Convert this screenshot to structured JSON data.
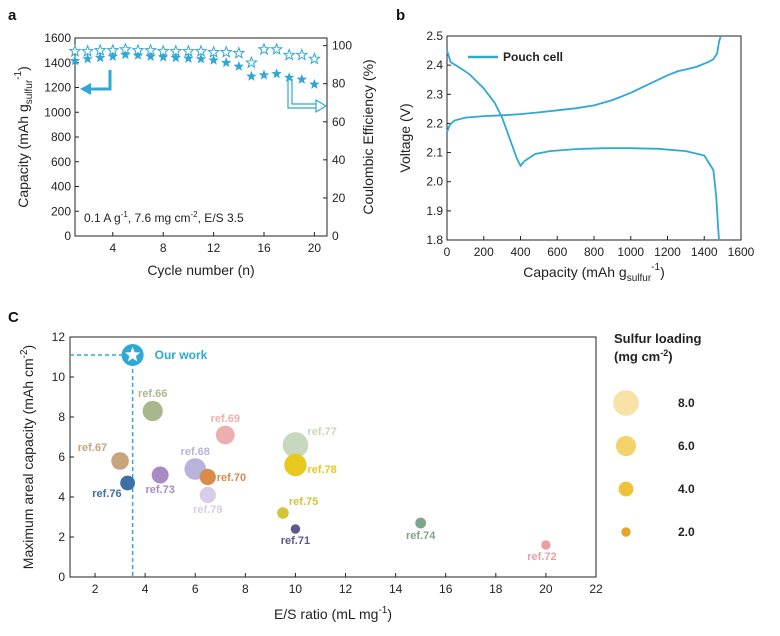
{
  "colors": {
    "accent": "#2FA8D5",
    "axis": "#222222"
  },
  "chart_data": [
    {
      "panel": "a",
      "type": "scatter",
      "xlabel": "Cycle number (n)",
      "ylabel_left_main": "Capacity (mAh g",
      "ylabel_left_sub": "sulfur",
      "ylabel_left_sup": "-1",
      "ylabel_left_end": ")",
      "ylabel_right": "Coulombic Efficiency (%)",
      "xlim": [
        1,
        21
      ],
      "xticks": [
        "4",
        "8",
        "12",
        "16",
        "20"
      ],
      "ylim_left": [
        0,
        1600
      ],
      "yticks_left": [
        "0",
        "200",
        "400",
        "600",
        "800",
        "1000",
        "1200",
        "1400",
        "1600"
      ],
      "ylim_right": [
        0,
        104
      ],
      "yticks_right": [
        "0",
        "20",
        "40",
        "60",
        "80",
        "100"
      ],
      "annotation": {
        "t1": "0.1 A g",
        "s1": "-1",
        "t2": ", 7.6 mg cm",
        "s2": "-2",
        "t3": ", E/S 3.5"
      },
      "series": [
        {
          "name": "Capacity",
          "marker": "filled-star",
          "axis": "left",
          "x": [
            1,
            2,
            3,
            4,
            5,
            6,
            7,
            8,
            9,
            10,
            11,
            12,
            13,
            14,
            15,
            16,
            17,
            18,
            19,
            20
          ],
          "values": [
            1415,
            1430,
            1440,
            1450,
            1465,
            1460,
            1450,
            1445,
            1440,
            1435,
            1430,
            1420,
            1400,
            1370,
            1290,
            1300,
            1310,
            1280,
            1265,
            1225
          ]
        },
        {
          "name": "Coulombic Efficiency",
          "marker": "open-star",
          "axis": "right",
          "x": [
            1,
            2,
            3,
            4,
            5,
            6,
            7,
            8,
            9,
            10,
            11,
            12,
            13,
            14,
            15,
            16,
            17,
            18,
            19,
            20
          ],
          "values": [
            97,
            97,
            97.5,
            97.5,
            98,
            97.5,
            97.5,
            97,
            97,
            97,
            97,
            96.5,
            96.5,
            96,
            91,
            98,
            98,
            95,
            95,
            93
          ]
        }
      ]
    },
    {
      "panel": "b",
      "type": "line",
      "xlabel_main": "Capacity (mAh g",
      "xlabel_sub": "sulfur",
      "xlabel_sup": "-1",
      "xlabel_end": ")",
      "ylabel": "Voltage (V)",
      "xlim": [
        0,
        1600
      ],
      "xticks": [
        "0",
        "200",
        "400",
        "600",
        "800",
        "1000",
        "1200",
        "1400",
        "1600"
      ],
      "ylim": [
        1.8,
        2.5
      ],
      "yticks": [
        "1.8",
        "1.9",
        "2.0",
        "2.1",
        "2.2",
        "2.3",
        "2.4",
        "2.5"
      ],
      "legend": "Pouch cell",
      "series": [
        {
          "name": "Discharge",
          "x": [
            0,
            20,
            60,
            120,
            200,
            260,
            300,
            340,
            380,
            400,
            420,
            480,
            560,
            700,
            850,
            1000,
            1150,
            1300,
            1400,
            1450,
            1465,
            1475,
            1480
          ],
          "values": [
            2.45,
            2.41,
            2.395,
            2.37,
            2.32,
            2.27,
            2.22,
            2.15,
            2.08,
            2.055,
            2.07,
            2.095,
            2.105,
            2.112,
            2.115,
            2.115,
            2.113,
            2.105,
            2.09,
            2.04,
            1.95,
            1.85,
            1.8
          ]
        },
        {
          "name": "Charge",
          "x": [
            0,
            15,
            40,
            100,
            200,
            300,
            400,
            500,
            600,
            700,
            800,
            900,
            1000,
            1100,
            1200,
            1260,
            1300,
            1360,
            1420,
            1450,
            1470,
            1480,
            1490
          ],
          "values": [
            2.17,
            2.195,
            2.21,
            2.22,
            2.225,
            2.228,
            2.232,
            2.238,
            2.245,
            2.252,
            2.262,
            2.28,
            2.305,
            2.335,
            2.365,
            2.38,
            2.385,
            2.395,
            2.41,
            2.42,
            2.44,
            2.48,
            2.5
          ]
        }
      ]
    },
    {
      "panel": "C",
      "type": "scatter",
      "xlabel": "E/S ratio (mL mg",
      "xlabel_sup": "-1",
      "xlabel_end": ")",
      "ylabel": "Maximum areal capacity (mAh cm",
      "ylabel_sup": "-2",
      "ylabel_end": ")",
      "xlim": [
        1,
        22
      ],
      "xticks": [
        "2",
        "4",
        "6",
        "8",
        "10",
        "12",
        "14",
        "16",
        "18",
        "20",
        "22"
      ],
      "ylim": [
        0,
        12
      ],
      "yticks": [
        "0",
        "2",
        "4",
        "6",
        "8",
        "10",
        "12"
      ],
      "our_work": {
        "label": "Our work",
        "x": 3.5,
        "y": 11.1
      },
      "points": [
        {
          "label": "ref.66",
          "x": 4.3,
          "y": 8.3,
          "loading": 6.0,
          "color": "#A9B88C"
        },
        {
          "label": "ref.67",
          "x": 3.0,
          "y": 5.8,
          "loading": 5.0,
          "color": "#C7A47E"
        },
        {
          "label": "ref.76",
          "x": 3.3,
          "y": 4.7,
          "loading": 4.0,
          "color": "#3F6FA7"
        },
        {
          "label": "ref.73",
          "x": 4.6,
          "y": 5.1,
          "loading": 4.8,
          "color": "#A88AC7"
        },
        {
          "label": "ref.68",
          "x": 6.0,
          "y": 5.4,
          "loading": 6.5,
          "color": "#B9B2DA"
        },
        {
          "label": "ref.70",
          "x": 6.5,
          "y": 5.0,
          "loading": 4.5,
          "color": "#D98B4A"
        },
        {
          "label": "ref.69",
          "x": 7.2,
          "y": 7.1,
          "loading": 5.5,
          "color": "#EBAFAF"
        },
        {
          "label": "ref.79",
          "x": 6.5,
          "y": 4.1,
          "loading": 4.5,
          "color": "#D6CDE8"
        },
        {
          "label": "ref.77",
          "x": 10.0,
          "y": 6.6,
          "loading": 8.0,
          "color": "#C6D8BE"
        },
        {
          "label": "ref.78",
          "x": 10.0,
          "y": 5.6,
          "loading": 6.8,
          "color": "#E8C81E"
        },
        {
          "label": "ref.75",
          "x": 9.5,
          "y": 3.2,
          "loading": 2.8,
          "color": "#D3C43A"
        },
        {
          "label": "ref.71",
          "x": 10.0,
          "y": 2.4,
          "loading": 2.0,
          "color": "#5A568E"
        },
        {
          "label": "ref.74",
          "x": 15.0,
          "y": 2.7,
          "loading": 2.5,
          "color": "#7FA58B"
        },
        {
          "label": "ref.72",
          "x": 20.0,
          "y": 1.6,
          "loading": 2.0,
          "color": "#EBA0A0"
        }
      ],
      "size_legend": {
        "title_line1": "Sulfur loading",
        "title_line2_main": "(mg cm",
        "title_line2_sup": "-2",
        "title_line2_end": ")",
        "entries": [
          {
            "label": "8.0",
            "loading": 8.0
          },
          {
            "label": "6.0",
            "loading": 6.0
          },
          {
            "label": "4.0",
            "loading": 4.0
          },
          {
            "label": "2.0",
            "loading": 2.0
          }
        ]
      }
    }
  ]
}
